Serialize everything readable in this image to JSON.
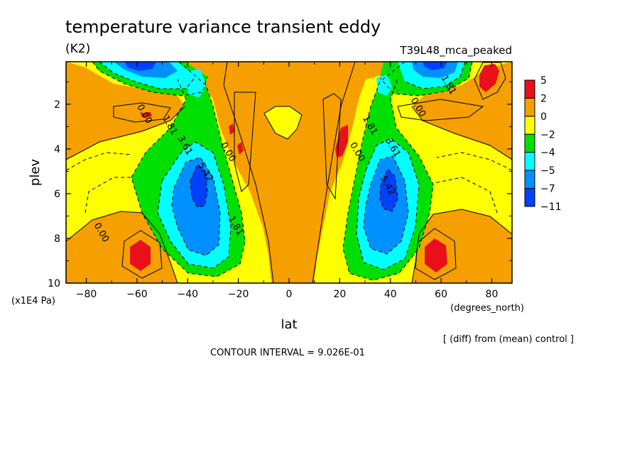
{
  "header": {
    "title": "temperature variance transient eddy",
    "units": "(K2)",
    "experiment": "T39L48_mca_peaked"
  },
  "footer": {
    "diff_note": "[ (diff) from (mean) control ]",
    "contour_interval": "CONTOUR INTERVAL = 9.026E-01"
  },
  "chart_data": {
    "type": "heatmap",
    "title": "temperature variance transient eddy",
    "xlabel": "lat",
    "ylabel": "plev",
    "x_units": "(degrees_north)",
    "y_units": "(x1E4 Pa)",
    "xlim": [
      -88,
      88
    ],
    "ylim": [
      10,
      0.1
    ],
    "x_ticks": [
      -80,
      -60,
      -40,
      -20,
      0,
      20,
      40,
      60,
      80
    ],
    "y_ticks": [
      2,
      4,
      6,
      8,
      10
    ],
    "colorbar": {
      "labels": [
        "5",
        "2",
        "0",
        "−2",
        "−4",
        "−5",
        "−7",
        "−11"
      ],
      "colors": [
        "#e8101a",
        "#f5a000",
        "#ffff00",
        "#00e000",
        "#00ffff",
        "#0090ff",
        "#0040ff"
      ]
    },
    "contour_labels": [
      {
        "text": "0.00",
        "lat": -58,
        "plev": 2.5
      },
      {
        "text": "1.81",
        "lat": -48,
        "plev": 3.0
      },
      {
        "text": "3.61",
        "lat": -42,
        "plev": 3.9
      },
      {
        "text": "5.42",
        "lat": -34,
        "plev": 5.1
      },
      {
        "text": "0.00",
        "lat": -25,
        "plev": 4.2
      },
      {
        "text": "1.81",
        "lat": -22,
        "plev": 7.5
      },
      {
        "text": "0.00",
        "lat": -75,
        "plev": 7.8
      },
      {
        "text": "0.00",
        "lat": 26,
        "plev": 4.2
      },
      {
        "text": "1.81",
        "lat": 31,
        "plev": 3.0
      },
      {
        "text": "3.61",
        "lat": 40,
        "plev": 4.0
      },
      {
        "text": "5.42",
        "lat": 38,
        "plev": 5.7
      },
      {
        "text": "0.00",
        "lat": 50,
        "plev": 2.2
      },
      {
        "text": "1.81",
        "lat": 62,
        "plev": 1.2
      }
    ]
  }
}
